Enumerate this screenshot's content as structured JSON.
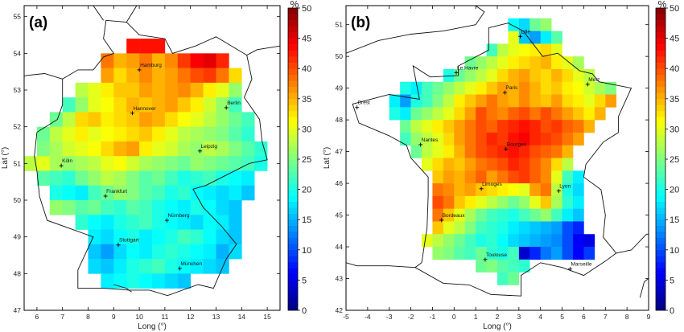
{
  "chart_data": [
    {
      "type": "heatmap",
      "panel_label": "(a)",
      "xlabel": "Long (°)",
      "ylabel": "Lat (°)",
      "xlim": [
        5.5,
        15.5
      ],
      "ylim": [
        47,
        55.3
      ],
      "xticks": [
        6,
        7,
        8,
        9,
        10,
        11,
        12,
        13,
        14,
        15
      ],
      "yticks": [
        47,
        48,
        49,
        50,
        51,
        52,
        53,
        54,
        55
      ],
      "cell": [
        0.5,
        0.4
      ],
      "colorbar": {
        "label": "%",
        "min": 0,
        "max": 50,
        "ticks": [
          0,
          5,
          10,
          15,
          20,
          25,
          30,
          35,
          40,
          45,
          50
        ]
      },
      "cities": [
        {
          "name": "Hamburg",
          "lon": 10.0,
          "lat": 53.55
        },
        {
          "name": "Berlin",
          "lon": 13.4,
          "lat": 52.52
        },
        {
          "name": "Hannover",
          "lon": 9.73,
          "lat": 52.37
        },
        {
          "name": "Leipzig",
          "lon": 12.37,
          "lat": 51.34
        },
        {
          "name": "Köln",
          "lon": 6.95,
          "lat": 50.94
        },
        {
          "name": "Frankfurt",
          "lon": 8.68,
          "lat": 50.11
        },
        {
          "name": "Nürnberg",
          "lon": 11.08,
          "lat": 49.45
        },
        {
          "name": "Stuttgart",
          "lon": 9.18,
          "lat": 48.78
        },
        {
          "name": "München",
          "lon": 11.58,
          "lat": 48.14
        }
      ],
      "grid_rows": [
        {
          "lat": 54.0,
          "lon0": 9.5,
          "values": [
            43,
            43,
            43
          ]
        },
        {
          "lat": 53.6,
          "lon0": 8.5,
          "values": [
            38,
            35,
            36,
            38,
            35,
            37,
            41,
            44,
            45,
            42
          ]
        },
        {
          "lat": 53.2,
          "lon0": 8.5,
          "values": [
            36,
            33,
            35,
            37,
            35,
            36,
            38,
            40,
            41,
            38,
            33
          ]
        },
        {
          "lat": 52.8,
          "lon0": 7.5,
          "values": [
            28,
            30,
            32,
            34,
            34,
            36,
            35,
            36,
            37,
            35,
            32,
            30,
            26
          ]
        },
        {
          "lat": 52.4,
          "lon0": 7.0,
          "values": [
            22,
            26,
            30,
            31,
            33,
            35,
            34,
            35,
            36,
            34,
            32,
            29,
            26,
            22
          ]
        },
        {
          "lat": 52.0,
          "lon0": 6.5,
          "values": [
            24,
            28,
            33,
            34,
            32,
            33,
            34,
            36,
            35,
            33,
            31,
            30,
            28,
            26,
            24,
            22
          ]
        },
        {
          "lat": 51.6,
          "lon0": 6.0,
          "values": [
            24,
            28,
            30,
            32,
            30,
            31,
            32,
            33,
            34,
            32,
            30,
            28,
            27,
            26,
            25,
            23,
            21
          ]
        },
        {
          "lat": 51.2,
          "lon0": 6.0,
          "values": [
            25,
            27,
            29,
            30,
            31,
            33,
            35,
            36,
            32,
            30,
            29,
            27,
            26,
            28,
            27,
            25,
            23,
            21
          ]
        },
        {
          "lat": 50.8,
          "lon0": 5.5,
          "values": [
            28,
            30,
            27,
            26,
            27,
            28,
            30,
            31,
            29,
            27,
            26,
            25,
            24,
            26,
            25,
            24,
            23,
            22,
            20
          ]
        },
        {
          "lat": 50.4,
          "lon0": 6.0,
          "values": [
            23,
            22,
            21,
            24,
            26,
            28,
            27,
            25,
            23,
            24,
            22,
            20,
            21,
            22,
            20,
            19,
            18
          ]
        },
        {
          "lat": 50.0,
          "lon0": 6.5,
          "values": [
            20,
            19,
            18,
            22,
            24,
            26,
            25,
            23,
            22,
            20,
            21,
            19,
            18,
            17,
            18,
            16
          ]
        },
        {
          "lat": 49.6,
          "lon0": 6.5,
          "values": [
            26,
            25,
            23,
            24,
            22,
            21,
            23,
            22,
            20,
            19,
            18,
            20,
            19,
            17,
            16
          ]
        },
        {
          "lat": 49.2,
          "lon0": 7.5,
          "values": [
            21,
            19,
            18,
            20,
            21,
            22,
            20,
            19,
            18,
            17,
            19,
            18,
            16
          ]
        },
        {
          "lat": 48.8,
          "lon0": 8.0,
          "values": [
            18,
            17,
            19,
            20,
            18,
            19,
            20,
            22,
            21,
            19,
            17,
            16
          ]
        },
        {
          "lat": 48.4,
          "lon0": 8.0,
          "values": [
            16,
            14,
            17,
            19,
            18,
            20,
            21,
            20,
            19,
            18,
            15,
            17
          ]
        },
        {
          "lat": 48.0,
          "lon0": 8.0,
          "values": [
            17,
            16,
            18,
            20,
            21,
            22,
            20,
            19,
            18,
            17,
            16
          ]
        },
        {
          "lat": 47.6,
          "lon0": 8.5,
          "values": [
            18,
            19,
            20,
            19,
            18,
            17,
            16
          ]
        }
      ]
    },
    {
      "type": "heatmap",
      "panel_label": "(b)",
      "xlabel": "Long (°)",
      "ylabel": "Lat (°)",
      "xlim": [
        -5,
        9
      ],
      "ylim": [
        42,
        51.6
      ],
      "xticks": [
        -5,
        -4,
        -3,
        -2,
        -1,
        0,
        1,
        2,
        3,
        4,
        5,
        6,
        7,
        8,
        9
      ],
      "yticks": [
        42,
        43,
        44,
        45,
        46,
        47,
        48,
        49,
        50,
        51
      ],
      "cell": [
        0.5,
        0.4
      ],
      "colorbar": {
        "label": "%",
        "min": 0,
        "max": 50,
        "ticks": [
          0,
          5,
          10,
          15,
          20,
          25,
          30,
          35,
          40,
          45,
          50
        ]
      },
      "cities": [
        {
          "name": "Lille",
          "lon": 3.06,
          "lat": 50.63
        },
        {
          "name": "Le Havre",
          "lon": 0.1,
          "lat": 49.49
        },
        {
          "name": "Paris",
          "lon": 2.35,
          "lat": 48.86
        },
        {
          "name": "Metz",
          "lon": 6.18,
          "lat": 49.12
        },
        {
          "name": "Brest",
          "lon": -4.49,
          "lat": 48.39
        },
        {
          "name": "Nantes",
          "lon": -1.55,
          "lat": 47.22
        },
        {
          "name": "Bourges",
          "lon": 2.4,
          "lat": 47.08
        },
        {
          "name": "Limoges",
          "lon": 1.26,
          "lat": 45.83
        },
        {
          "name": "Lyon",
          "lon": 4.84,
          "lat": 45.76
        },
        {
          "name": "Bordeaux",
          "lon": -0.58,
          "lat": 44.84
        },
        {
          "name": "Toulouse",
          "lon": 1.44,
          "lat": 43.6
        },
        {
          "name": "Marseille",
          "lon": 5.37,
          "lat": 43.3
        }
      ],
      "grid_rows": [
        {
          "lat": 50.8,
          "lon0": 2.5,
          "values": [
            19,
            17,
            24,
            26
          ]
        },
        {
          "lat": 50.4,
          "lon0": 2.5,
          "values": [
            30,
            16,
            14,
            18,
            23
          ]
        },
        {
          "lat": 50.0,
          "lon0": 1.5,
          "values": [
            22,
            28,
            30,
            31,
            32,
            33,
            30
          ]
        },
        {
          "lat": 49.6,
          "lon0": 0.5,
          "values": [
            24,
            26,
            28,
            30,
            32,
            33,
            34,
            35,
            32,
            30,
            27
          ]
        },
        {
          "lat": 49.2,
          "lon0": -0.5,
          "values": [
            20,
            24,
            26,
            28,
            30,
            33,
            35,
            36,
            34,
            33,
            35,
            33,
            30,
            28
          ]
        },
        {
          "lat": 48.8,
          "lon0": -2.5,
          "values": [
            20,
            18,
            22,
            24,
            26,
            28,
            30,
            32,
            34,
            36,
            35,
            37,
            35,
            33,
            34,
            32,
            31,
            29,
            27,
            25
          ]
        },
        {
          "lat": 48.4,
          "lon0": -3.0,
          "values": [
            18,
            14,
            20,
            22,
            25,
            28,
            32,
            34,
            36,
            38,
            36,
            35,
            37,
            35,
            34,
            36,
            33,
            32,
            30,
            33,
            36
          ]
        },
        {
          "lat": 48.0,
          "lon0": -3.0,
          "values": [
            20,
            18,
            24,
            26,
            28,
            30,
            33,
            36,
            40,
            38,
            37,
            39,
            40,
            38,
            40,
            38,
            36,
            34,
            32,
            35
          ]
        },
        {
          "lat": 47.6,
          "lon0": -2.5,
          "values": [
            24,
            28,
            30,
            32,
            34,
            36,
            38,
            40,
            39,
            41,
            42,
            43,
            42,
            40,
            41,
            39,
            38,
            35
          ]
        },
        {
          "lat": 47.2,
          "lon0": -2.5,
          "values": [
            22,
            26,
            28,
            30,
            33,
            36,
            38,
            40,
            42,
            41,
            43,
            44,
            42,
            41,
            40,
            38,
            36
          ]
        },
        {
          "lat": 46.8,
          "lon0": -2.0,
          "values": [
            24,
            28,
            30,
            32,
            35,
            38,
            40,
            41,
            42,
            43,
            42,
            40,
            39,
            38,
            35
          ]
        },
        {
          "lat": 46.4,
          "lon0": -1.5,
          "values": [
            30,
            33,
            35,
            34,
            36,
            38,
            39,
            40,
            42,
            41,
            39,
            37,
            33,
            28
          ]
        },
        {
          "lat": 46.0,
          "lon0": -1.0,
          "values": [
            34,
            36,
            35,
            37,
            39,
            36,
            38,
            40,
            41,
            39,
            37,
            30,
            22,
            18
          ]
        },
        {
          "lat": 45.6,
          "lon0": -1.0,
          "values": [
            38,
            37,
            35,
            36,
            34,
            33,
            32,
            31,
            30,
            36,
            38,
            28,
            20,
            17
          ]
        },
        {
          "lat": 45.2,
          "lon0": -1.0,
          "values": [
            40,
            38,
            34,
            32,
            30,
            28,
            26,
            24,
            26,
            30,
            34,
            27,
            21,
            18
          ]
        },
        {
          "lat": 44.8,
          "lon0": -1.0,
          "values": [
            38,
            34,
            30,
            27,
            24,
            22,
            21,
            20,
            22,
            24,
            26,
            22,
            18,
            16
          ]
        },
        {
          "lat": 44.4,
          "lon0": -1.0,
          "values": [
            34,
            30,
            28,
            25,
            22,
            21,
            20,
            18,
            17,
            16,
            15,
            14,
            10,
            8
          ]
        },
        {
          "lat": 44.0,
          "lon0": -1.5,
          "values": [
            30,
            28,
            26,
            24,
            22,
            20,
            21,
            19,
            17,
            16,
            15,
            14,
            13,
            10,
            6,
            5
          ]
        },
        {
          "lat": 43.6,
          "lon0": -1.0,
          "values": [
            26,
            25,
            23,
            22,
            24,
            21,
            20,
            22,
            4,
            8,
            12,
            14,
            10,
            6,
            9
          ]
        },
        {
          "lat": 43.2,
          "lon0": 1.0,
          "values": [
            24,
            25,
            23,
            22,
            21
          ]
        },
        {
          "lat": 42.8,
          "lon0": 2.0,
          "values": [
            22,
            24
          ]
        }
      ]
    }
  ]
}
